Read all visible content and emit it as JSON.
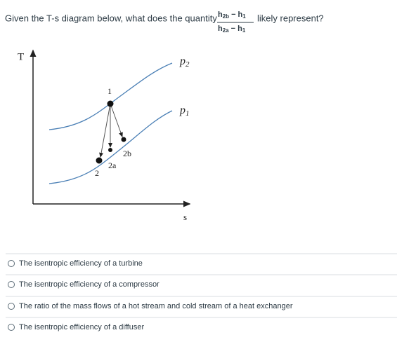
{
  "question": {
    "before": "Given the T-s diagram below, what does the quantity",
    "fraction": {
      "numerator": [
        {
          "symbol": "h",
          "sub": "2b"
        },
        {
          "operator": "−"
        },
        {
          "symbol": "h",
          "sub": "1"
        }
      ],
      "denominator": [
        {
          "symbol": "h",
          "sub": "2a"
        },
        {
          "operator": "−"
        },
        {
          "symbol": "h",
          "sub": "1"
        }
      ]
    },
    "after": "likely represent?"
  },
  "diagram": {
    "y_axis_label": "T",
    "x_axis_label": "s",
    "curves": [
      {
        "symbol": "p",
        "sub": "2"
      },
      {
        "symbol": "p",
        "sub": "1"
      }
    ],
    "points": [
      "1",
      "2",
      "2a",
      "2b"
    ]
  },
  "options": [
    "The isentropic efficiency of a turbine",
    "The isentropic efficiency of a compressor",
    "The ratio of the mass flows of a hot stream and cold stream of a heat exchanger",
    "The isentropic efficiency of a diffuser"
  ]
}
